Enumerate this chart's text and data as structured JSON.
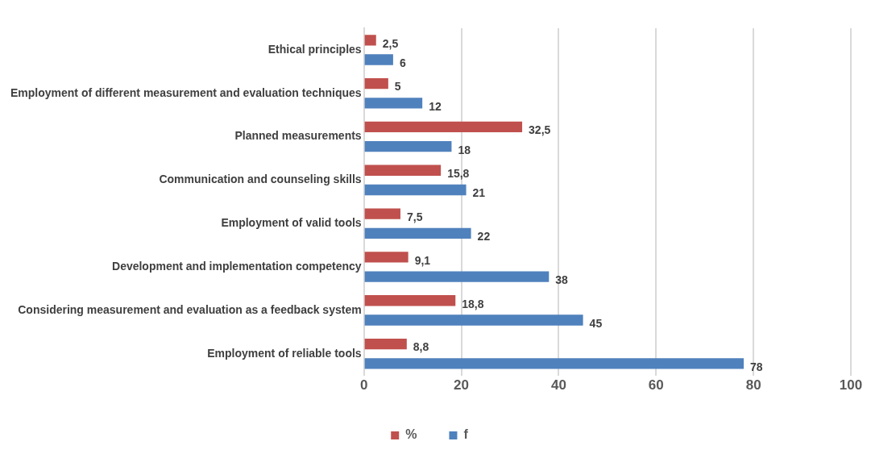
{
  "chart_data": {
    "type": "bar",
    "orientation": "horizontal",
    "categories": [
      "Ethical principles",
      "Employment of different measurement and evaluation techniques",
      "Planned measurements",
      "Communication and counseling skills",
      "Employment of valid tools",
      "Development and implementation competency",
      "Considering measurement and evaluation as a feedback system",
      "Employment of reliable tools"
    ],
    "series": [
      {
        "name": "%",
        "color": "#c0504d",
        "values": [
          2.5,
          5,
          32.5,
          15.8,
          7.5,
          9.1,
          18.8,
          8.8
        ],
        "value_labels": [
          "2,5",
          "5",
          "32,5",
          "15,8",
          "7,5",
          "9,1",
          "18,8",
          "8,8"
        ]
      },
      {
        "name": "f",
        "color": "#4f81bd",
        "values": [
          6,
          12,
          18,
          21,
          22,
          38,
          45,
          78
        ],
        "value_labels": [
          "6",
          "12",
          "18",
          "21",
          "22",
          "38",
          "45",
          "78"
        ]
      }
    ],
    "xlim": [
      0,
      100
    ],
    "xticks": [
      0,
      20,
      40,
      60,
      80,
      100
    ],
    "grid": "x",
    "legend": "bottom"
  }
}
